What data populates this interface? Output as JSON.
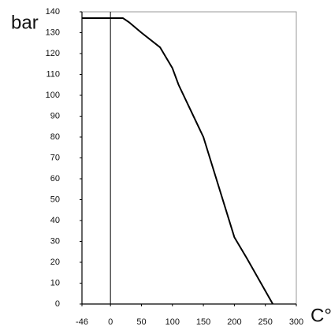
{
  "chart_data": {
    "type": "line",
    "y_label": "bar",
    "x_label": "C°",
    "x": [
      -46,
      20,
      30,
      50,
      80,
      100,
      110,
      150,
      200,
      220,
      262
    ],
    "series": [
      {
        "color": "#000000",
        "values": [
          137,
          137,
          135,
          130,
          123,
          113,
          105,
          80,
          32,
          22,
          0
        ]
      }
    ],
    "xlim": [
      -46,
      300
    ],
    "xticks": [
      -46,
      0,
      50,
      100,
      150,
      200,
      250,
      300
    ],
    "ylim": [
      0,
      140
    ],
    "yticks": [
      0,
      10,
      20,
      30,
      40,
      50,
      60,
      70,
      80,
      90,
      100,
      110,
      120,
      130,
      140
    ],
    "vline": 0
  }
}
